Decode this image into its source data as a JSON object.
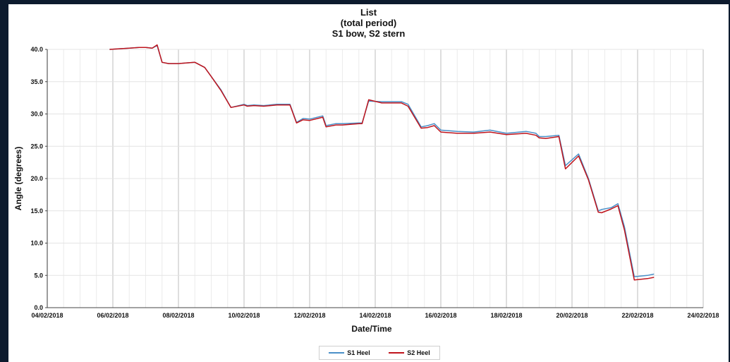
{
  "chart_data": {
    "type": "line",
    "title": "List",
    "subtitle_1": "(total period)",
    "subtitle_2": "S1 bow, S2 stern",
    "xlabel": "Date/Time",
    "ylabel": "Angle (degrees)",
    "ylim": [
      0,
      40
    ],
    "yticks": [
      "0.0",
      "5.0",
      "10.0",
      "15.0",
      "20.0",
      "25.0",
      "30.0",
      "35.0",
      "40.0"
    ],
    "xlim": [
      "04/02/2018",
      "24/02/2018"
    ],
    "xticks": [
      "04/02/2018",
      "06/02/2018",
      "08/02/2018",
      "10/02/2018",
      "12/02/2018",
      "14/02/2018",
      "16/02/2018",
      "18/02/2018",
      "20/02/2018",
      "22/02/2018",
      "24/02/2018"
    ],
    "grid": true,
    "legend_position": "bottom",
    "colors": {
      "s1": "#4a90c8",
      "s2": "#c0141c"
    },
    "series": [
      {
        "name": "S1 Heel",
        "x": [
          5.9,
          6.2,
          6.5,
          6.8,
          7.0,
          7.2,
          7.35,
          7.5,
          7.7,
          8.0,
          8.5,
          8.8,
          9.0,
          9.3,
          9.6,
          10.0,
          10.1,
          10.3,
          10.6,
          11.0,
          11.4,
          11.6,
          11.8,
          12.0,
          12.4,
          12.5,
          12.8,
          13.0,
          13.5,
          13.6,
          13.8,
          14.2,
          14.5,
          14.8,
          15.0,
          15.4,
          15.6,
          15.8,
          16.0,
          16.5,
          17.0,
          17.5,
          18.0,
          18.6,
          18.9,
          19.0,
          19.2,
          19.6,
          19.8,
          20.2,
          20.5,
          20.8,
          20.9,
          21.2,
          21.4,
          21.6,
          21.9,
          22.3,
          22.5
        ],
        "y": [
          40.0,
          40.1,
          40.2,
          40.3,
          40.3,
          40.2,
          40.6,
          38.0,
          37.8,
          37.8,
          38.0,
          37.2,
          35.8,
          33.7,
          31.0,
          31.5,
          31.3,
          31.4,
          31.3,
          31.5,
          31.5,
          28.7,
          29.3,
          29.2,
          29.7,
          28.2,
          28.5,
          28.5,
          28.6,
          28.6,
          32.0,
          31.9,
          31.9,
          31.9,
          31.5,
          28.0,
          28.2,
          28.5,
          27.5,
          27.3,
          27.2,
          27.5,
          27.0,
          27.3,
          27.0,
          26.5,
          26.5,
          26.7,
          22.0,
          23.8,
          20.0,
          15.0,
          15.2,
          15.5,
          16.1,
          12.5,
          4.8,
          5.0,
          5.2
        ]
      },
      {
        "name": "S2 Heel",
        "x": [
          5.9,
          6.2,
          6.5,
          6.8,
          7.0,
          7.2,
          7.35,
          7.5,
          7.7,
          8.0,
          8.5,
          8.8,
          9.0,
          9.3,
          9.6,
          10.0,
          10.1,
          10.3,
          10.6,
          11.0,
          11.4,
          11.6,
          11.8,
          12.0,
          12.4,
          12.5,
          12.8,
          13.0,
          13.5,
          13.6,
          13.8,
          14.2,
          14.5,
          14.8,
          15.0,
          15.4,
          15.6,
          15.8,
          16.0,
          16.5,
          17.0,
          17.5,
          18.0,
          18.6,
          18.9,
          19.0,
          19.2,
          19.6,
          19.8,
          20.2,
          20.5,
          20.8,
          20.9,
          21.2,
          21.4,
          21.6,
          21.9,
          22.3,
          22.5
        ],
        "y": [
          40.0,
          40.1,
          40.2,
          40.3,
          40.3,
          40.2,
          40.7,
          38.0,
          37.8,
          37.8,
          38.0,
          37.2,
          35.8,
          33.6,
          31.0,
          31.4,
          31.2,
          31.3,
          31.2,
          31.4,
          31.4,
          28.6,
          29.1,
          29.0,
          29.5,
          28.0,
          28.3,
          28.3,
          28.5,
          28.5,
          32.2,
          31.7,
          31.7,
          31.7,
          31.2,
          27.8,
          27.9,
          28.2,
          27.2,
          27.0,
          27.0,
          27.2,
          26.8,
          27.0,
          26.7,
          26.3,
          26.2,
          26.5,
          21.5,
          23.5,
          19.8,
          14.8,
          14.7,
          15.3,
          15.8,
          12.0,
          4.3,
          4.5,
          4.7
        ]
      }
    ]
  }
}
